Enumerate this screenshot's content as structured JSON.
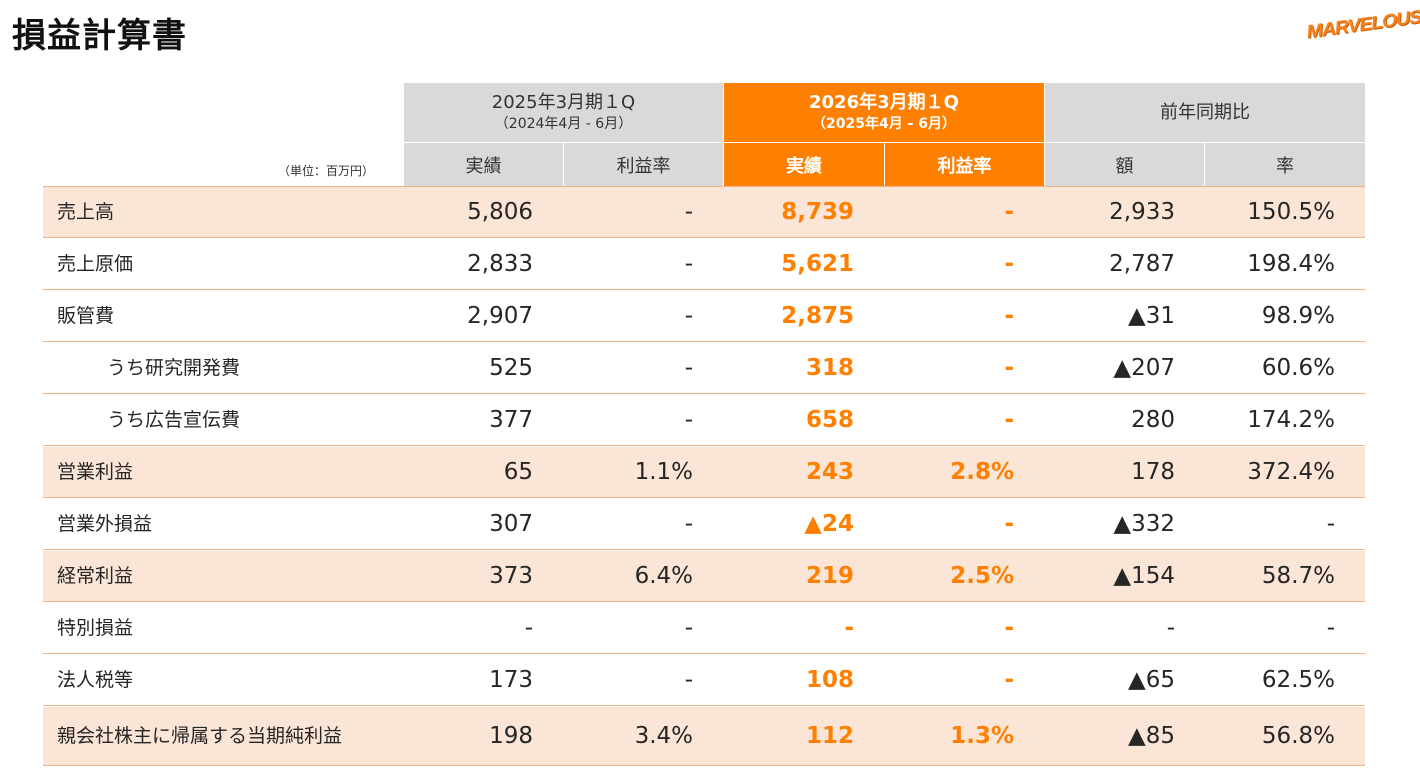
{
  "title": "損益計算書",
  "logo": "MARVELOUS!",
  "unit": "（単位：百万円）",
  "header": {
    "prev": {
      "line1": "2025年3月期１Q",
      "line2": "（2024年4月 - 6月）"
    },
    "cur": {
      "line1": "2026年3月期１Q",
      "line2": "（2025年4月 - 6月）"
    },
    "yoy": "前年同期比",
    "sub": [
      "実績",
      "利益率",
      "実績",
      "利益率",
      "額",
      "率"
    ]
  },
  "rows": [
    {
      "label": "売上高",
      "prev": "5,806",
      "prev_margin": "-",
      "cur": "8,739",
      "cur_margin": "-",
      "diff": "2,933",
      "rate": "150.5%"
    },
    {
      "label": "売上原価",
      "prev": "2,833",
      "prev_margin": "-",
      "cur": "5,621",
      "cur_margin": "-",
      "diff": "2,787",
      "rate": "198.4%"
    },
    {
      "label": "販管費",
      "prev": "2,907",
      "prev_margin": "-",
      "cur": "2,875",
      "cur_margin": "-",
      "diff": "▲31",
      "rate": "98.9%"
    },
    {
      "label": "うち研究開発費",
      "prev": "525",
      "prev_margin": "-",
      "cur": "318",
      "cur_margin": "-",
      "diff": "▲207",
      "rate": "60.6%"
    },
    {
      "label": "うち広告宣伝費",
      "prev": "377",
      "prev_margin": "-",
      "cur": "658",
      "cur_margin": "-",
      "diff": "280",
      "rate": "174.2%"
    },
    {
      "label": "営業利益",
      "prev": "65",
      "prev_margin": "1.1%",
      "cur": "243",
      "cur_margin": "2.8%",
      "diff": "178",
      "rate": "372.4%"
    },
    {
      "label": "営業外損益",
      "prev": "307",
      "prev_margin": "-",
      "cur": "▲24",
      "cur_margin": "-",
      "diff": "▲332",
      "rate": "-"
    },
    {
      "label": "経常利益",
      "prev": "373",
      "prev_margin": "6.4%",
      "cur": "219",
      "cur_margin": "2.5%",
      "diff": "▲154",
      "rate": "58.7%"
    },
    {
      "label": "特別損益",
      "prev": "-",
      "prev_margin": "-",
      "cur": "-",
      "cur_margin": "-",
      "diff": "-",
      "rate": "-"
    },
    {
      "label": "法人税等",
      "prev": "173",
      "prev_margin": "-",
      "cur": "108",
      "cur_margin": "-",
      "diff": "▲65",
      "rate": "62.5%"
    },
    {
      "label": "親会社株主に帰属する当期純利益",
      "prev": "198",
      "prev_margin": "3.4%",
      "cur": "112",
      "cur_margin": "1.3%",
      "diff": "▲85",
      "rate": "56.8%"
    }
  ]
}
